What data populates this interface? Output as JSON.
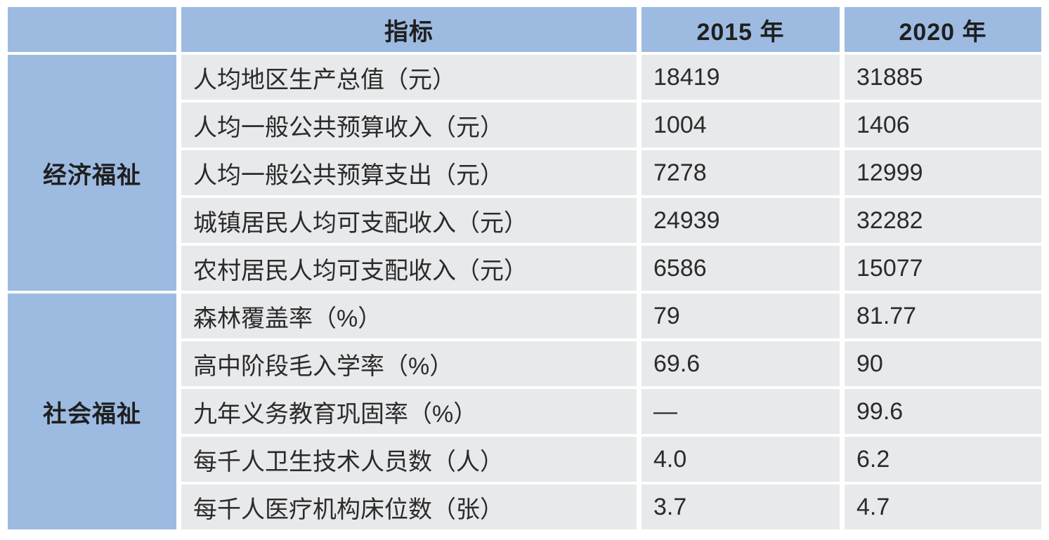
{
  "colors": {
    "header_blue": "#9dbbe1",
    "row_gray": "#e8e9eb",
    "grid_white": "#ffffff",
    "text_dark": "#2b2b2b"
  },
  "table": {
    "header": {
      "corner": "",
      "indicator": "指标",
      "year_2015": "2015 年",
      "year_2020": "2020 年"
    },
    "groups": [
      {
        "label": "经济福祉"
      },
      {
        "label": "社会福祉"
      }
    ],
    "rows": [
      {
        "indicator": "人均地区生产总值（元）",
        "v2015": "18419",
        "v2020": "31885"
      },
      {
        "indicator": "人均一般公共预算收入（元）",
        "v2015": "1004",
        "v2020": "1406"
      },
      {
        "indicator": "人均一般公共预算支出（元）",
        "v2015": "7278",
        "v2020": "12999"
      },
      {
        "indicator": "城镇居民人均可支配收入（元）",
        "v2015": "24939",
        "v2020": "32282"
      },
      {
        "indicator": "农村居民人均可支配收入（元）",
        "v2015": "6586",
        "v2020": "15077"
      },
      {
        "indicator": "森林覆盖率（%）",
        "v2015": "79",
        "v2020": "81.77"
      },
      {
        "indicator": "高中阶段毛入学率（%）",
        "v2015": "69.6",
        "v2020": "90"
      },
      {
        "indicator": "九年义务教育巩固率（%）",
        "v2015": "—",
        "v2020": "99.6"
      },
      {
        "indicator": "每千人卫生技术人员数（人）",
        "v2015": "4.0",
        "v2020": "6.2"
      },
      {
        "indicator": "每千人医疗机构床位数（张）",
        "v2015": "3.7",
        "v2020": "4.7"
      }
    ]
  },
  "chart_data": {
    "type": "table",
    "title": "",
    "columns": [
      "",
      "指标",
      "2015 年",
      "2020 年"
    ],
    "row_groups": [
      {
        "group": "经济福祉",
        "rows": [
          [
            "人均地区生产总值（元）",
            18419,
            31885
          ],
          [
            "人均一般公共预算收入（元）",
            1004,
            1406
          ],
          [
            "人均一般公共预算支出（元）",
            7278,
            12999
          ],
          [
            "城镇居民人均可支配收入（元）",
            24939,
            32282
          ],
          [
            "农村居民人均可支配收入（元）",
            6586,
            15077
          ]
        ]
      },
      {
        "group": "社会福祉",
        "rows": [
          [
            "森林覆盖率（%）",
            79,
            81.77
          ],
          [
            "高中阶段毛入学率（%）",
            69.6,
            90
          ],
          [
            "九年义务教育巩固率（%）",
            null,
            99.6
          ],
          [
            "每千人卫生技术人员数（人）",
            4.0,
            6.2
          ],
          [
            "每千人医疗机构床位数（张）",
            3.7,
            4.7
          ]
        ]
      }
    ],
    "notes": "null indicates a dash (—, data not available) for 九年义务教育巩固率 in 2015"
  }
}
